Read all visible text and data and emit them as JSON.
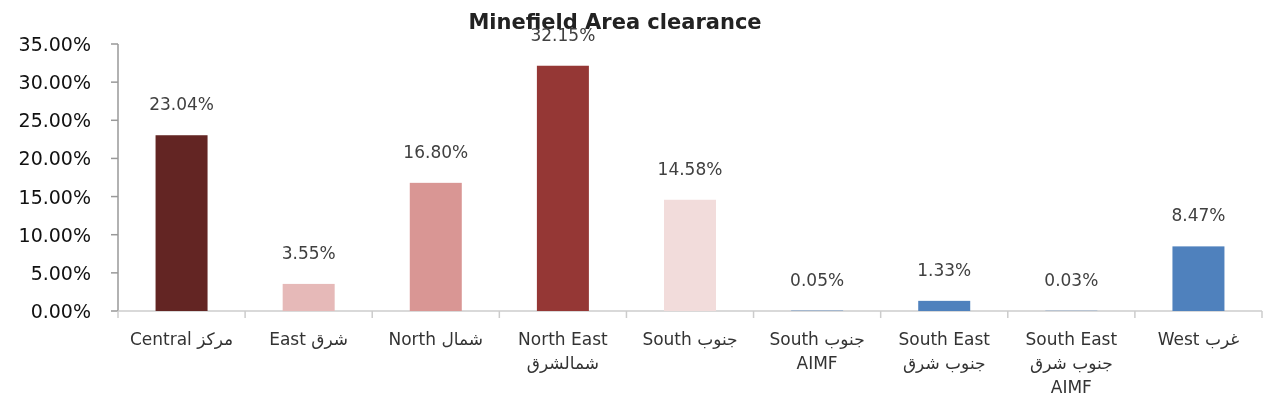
{
  "chart_data": {
    "type": "bar",
    "title": "Minefield Area clearance",
    "categories": [
      "Central مركز",
      "East شرق",
      "North شمال",
      "North East شمالشرق",
      "South جنوب",
      "South جنوب AIMF",
      "South East جنوب شرق",
      "South East جنوب شرق AIMF",
      "West غرب"
    ],
    "values": [
      23.04,
      3.55,
      16.8,
      32.15,
      14.58,
      0.05,
      1.33,
      0.03,
      8.47
    ],
    "value_labels": [
      "23.04%",
      "3.55%",
      "16.80%",
      "32.15%",
      "14.58%",
      "0.05%",
      "1.33%",
      "0.03%",
      "8.47%"
    ],
    "colors": [
      "#632523",
      "#e6b9b8",
      "#d99694",
      "#953735",
      "#f2dcdb",
      "#4f81bd",
      "#4f81bd",
      "#4f81bd",
      "#4f81bd"
    ],
    "ylim": [
      0,
      35
    ],
    "yticks": [
      {
        "value": 0,
        "label": "0.00%"
      },
      {
        "value": 5,
        "label": "5.00%"
      },
      {
        "value": 10,
        "label": "10.00%"
      },
      {
        "value": 15,
        "label": "15.00%"
      },
      {
        "value": 20,
        "label": "20.00%"
      },
      {
        "value": 25,
        "label": "25.00%"
      },
      {
        "value": 30,
        "label": "30.00%"
      },
      {
        "value": 35,
        "label": "35.00%"
      }
    ],
    "grid": false
  }
}
